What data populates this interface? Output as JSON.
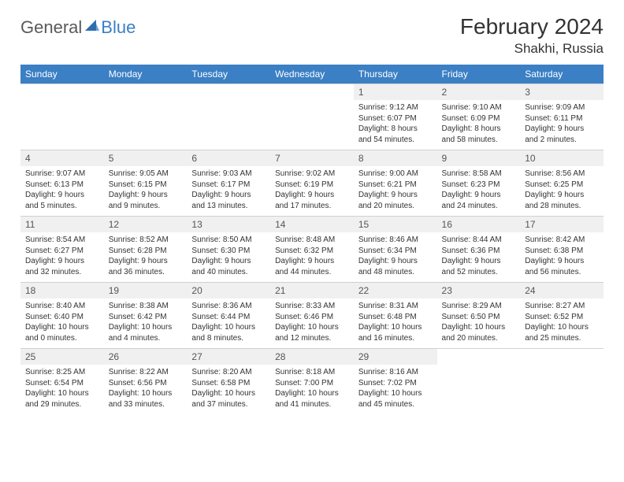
{
  "brand": {
    "text1": "General",
    "text2": "Blue"
  },
  "title": "February 2024",
  "location": "Shakhi, Russia",
  "colors": {
    "header_bg": "#3b7fc4",
    "header_text": "#ffffff",
    "daynum_bg": "#f0f0f0",
    "border": "#d0d0d0",
    "body_text": "#333333",
    "logo_gray": "#5a5a5a",
    "logo_blue": "#3b7fc4"
  },
  "weekdays": [
    "Sunday",
    "Monday",
    "Tuesday",
    "Wednesday",
    "Thursday",
    "Friday",
    "Saturday"
  ],
  "weeks": [
    [
      null,
      null,
      null,
      null,
      {
        "d": "1",
        "sr": "9:12 AM",
        "ss": "6:07 PM",
        "dl": "8 hours and 54 minutes."
      },
      {
        "d": "2",
        "sr": "9:10 AM",
        "ss": "6:09 PM",
        "dl": "8 hours and 58 minutes."
      },
      {
        "d": "3",
        "sr": "9:09 AM",
        "ss": "6:11 PM",
        "dl": "9 hours and 2 minutes."
      }
    ],
    [
      {
        "d": "4",
        "sr": "9:07 AM",
        "ss": "6:13 PM",
        "dl": "9 hours and 5 minutes."
      },
      {
        "d": "5",
        "sr": "9:05 AM",
        "ss": "6:15 PM",
        "dl": "9 hours and 9 minutes."
      },
      {
        "d": "6",
        "sr": "9:03 AM",
        "ss": "6:17 PM",
        "dl": "9 hours and 13 minutes."
      },
      {
        "d": "7",
        "sr": "9:02 AM",
        "ss": "6:19 PM",
        "dl": "9 hours and 17 minutes."
      },
      {
        "d": "8",
        "sr": "9:00 AM",
        "ss": "6:21 PM",
        "dl": "9 hours and 20 minutes."
      },
      {
        "d": "9",
        "sr": "8:58 AM",
        "ss": "6:23 PM",
        "dl": "9 hours and 24 minutes."
      },
      {
        "d": "10",
        "sr": "8:56 AM",
        "ss": "6:25 PM",
        "dl": "9 hours and 28 minutes."
      }
    ],
    [
      {
        "d": "11",
        "sr": "8:54 AM",
        "ss": "6:27 PM",
        "dl": "9 hours and 32 minutes."
      },
      {
        "d": "12",
        "sr": "8:52 AM",
        "ss": "6:28 PM",
        "dl": "9 hours and 36 minutes."
      },
      {
        "d": "13",
        "sr": "8:50 AM",
        "ss": "6:30 PM",
        "dl": "9 hours and 40 minutes."
      },
      {
        "d": "14",
        "sr": "8:48 AM",
        "ss": "6:32 PM",
        "dl": "9 hours and 44 minutes."
      },
      {
        "d": "15",
        "sr": "8:46 AM",
        "ss": "6:34 PM",
        "dl": "9 hours and 48 minutes."
      },
      {
        "d": "16",
        "sr": "8:44 AM",
        "ss": "6:36 PM",
        "dl": "9 hours and 52 minutes."
      },
      {
        "d": "17",
        "sr": "8:42 AM",
        "ss": "6:38 PM",
        "dl": "9 hours and 56 minutes."
      }
    ],
    [
      {
        "d": "18",
        "sr": "8:40 AM",
        "ss": "6:40 PM",
        "dl": "10 hours and 0 minutes."
      },
      {
        "d": "19",
        "sr": "8:38 AM",
        "ss": "6:42 PM",
        "dl": "10 hours and 4 minutes."
      },
      {
        "d": "20",
        "sr": "8:36 AM",
        "ss": "6:44 PM",
        "dl": "10 hours and 8 minutes."
      },
      {
        "d": "21",
        "sr": "8:33 AM",
        "ss": "6:46 PM",
        "dl": "10 hours and 12 minutes."
      },
      {
        "d": "22",
        "sr": "8:31 AM",
        "ss": "6:48 PM",
        "dl": "10 hours and 16 minutes."
      },
      {
        "d": "23",
        "sr": "8:29 AM",
        "ss": "6:50 PM",
        "dl": "10 hours and 20 minutes."
      },
      {
        "d": "24",
        "sr": "8:27 AM",
        "ss": "6:52 PM",
        "dl": "10 hours and 25 minutes."
      }
    ],
    [
      {
        "d": "25",
        "sr": "8:25 AM",
        "ss": "6:54 PM",
        "dl": "10 hours and 29 minutes."
      },
      {
        "d": "26",
        "sr": "8:22 AM",
        "ss": "6:56 PM",
        "dl": "10 hours and 33 minutes."
      },
      {
        "d": "27",
        "sr": "8:20 AM",
        "ss": "6:58 PM",
        "dl": "10 hours and 37 minutes."
      },
      {
        "d": "28",
        "sr": "8:18 AM",
        "ss": "7:00 PM",
        "dl": "10 hours and 41 minutes."
      },
      {
        "d": "29",
        "sr": "8:16 AM",
        "ss": "7:02 PM",
        "dl": "10 hours and 45 minutes."
      },
      null,
      null
    ]
  ],
  "labels": {
    "sunrise": "Sunrise:",
    "sunset": "Sunset:",
    "daylight": "Daylight:"
  }
}
